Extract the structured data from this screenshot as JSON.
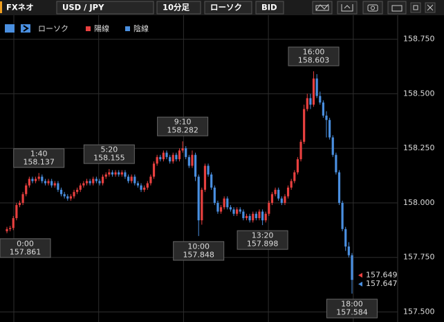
{
  "toolbar": {
    "app_name": "FXネオ",
    "pair": "USD / JPY",
    "interval": "10分足",
    "chart_kind": "ローソク",
    "price_side": "BID"
  },
  "chart_data": {
    "type": "candlestick",
    "indicator": "ローソク",
    "series": [
      {
        "name": "陽線",
        "color": "#e8403f"
      },
      {
        "name": "陰線",
        "color": "#4a8fe0"
      }
    ],
    "open": [
      157.87,
      157.88,
      157.885,
      157.93,
      157.99,
      158.0,
      158.04,
      158.08,
      158.11,
      158.1,
      158.11,
      158.12,
      158.1,
      158.09,
      158.1,
      158.08,
      158.09,
      158.06,
      158.04,
      158.03,
      158.02,
      158.03,
      158.05,
      158.06,
      158.08,
      158.09,
      158.1,
      158.09,
      158.11,
      158.1,
      158.09,
      158.12,
      158.13,
      158.14,
      158.13,
      158.14,
      158.13,
      158.14,
      158.12,
      158.1,
      158.12,
      158.09,
      158.08,
      158.06,
      158.07,
      158.09,
      158.12,
      158.18,
      158.21,
      158.2,
      158.23,
      158.21,
      158.19,
      158.22,
      158.2,
      158.24,
      158.25,
      158.21,
      158.17,
      158.22,
      158.12,
      157.92,
      158.06,
      158.17,
      158.13,
      158.07,
      158.0,
      157.96,
      157.98,
      158.02,
      157.98,
      157.97,
      157.95,
      157.97,
      157.96,
      157.93,
      157.94,
      157.92,
      157.95,
      157.93,
      157.96,
      157.92,
      157.95,
      158.0,
      158.04,
      158.06,
      158.02,
      158.0,
      158.03,
      158.07,
      158.1,
      158.14,
      158.2,
      158.28,
      158.43,
      158.48,
      158.45,
      158.57,
      158.49,
      158.46,
      158.4,
      158.38,
      158.3,
      158.22,
      158.14,
      158.0,
      157.88,
      157.8,
      157.76
    ],
    "high": [
      157.89,
      157.895,
      157.94,
      158.0,
      158.01,
      158.05,
      158.09,
      158.12,
      158.12,
      158.12,
      158.137,
      158.13,
      158.11,
      158.11,
      158.11,
      158.1,
      158.1,
      158.07,
      158.05,
      158.04,
      158.04,
      158.06,
      158.07,
      158.09,
      158.1,
      158.11,
      158.11,
      158.12,
      158.12,
      158.11,
      158.13,
      158.14,
      158.155,
      158.15,
      158.15,
      158.15,
      158.15,
      158.15,
      158.13,
      158.13,
      158.13,
      158.1,
      158.09,
      158.08,
      158.1,
      158.13,
      158.19,
      158.22,
      158.22,
      158.24,
      158.24,
      158.22,
      158.23,
      158.23,
      158.25,
      158.282,
      158.26,
      158.22,
      158.24,
      158.23,
      158.13,
      158.07,
      158.18,
      158.18,
      158.14,
      158.08,
      158.01,
      157.99,
      158.03,
      158.03,
      157.99,
      157.98,
      157.98,
      157.98,
      157.97,
      157.95,
      157.95,
      157.96,
      157.96,
      157.97,
      157.97,
      157.96,
      158.01,
      158.05,
      158.07,
      158.07,
      158.03,
      158.04,
      158.08,
      158.11,
      158.15,
      158.21,
      158.29,
      158.45,
      158.5,
      158.5,
      158.603,
      158.59,
      158.51,
      158.47,
      158.42,
      158.39,
      158.31,
      158.23,
      158.15,
      158.01,
      157.89,
      157.82,
      157.77
    ],
    "low": [
      157.861,
      157.87,
      157.875,
      157.92,
      157.98,
      157.99,
      158.03,
      158.07,
      158.09,
      158.09,
      158.1,
      158.09,
      158.08,
      158.08,
      158.07,
      158.07,
      158.05,
      158.03,
      158.02,
      158.01,
      158.01,
      158.02,
      158.04,
      158.05,
      158.07,
      158.08,
      158.08,
      158.08,
      158.09,
      158.08,
      158.08,
      158.11,
      158.12,
      158.12,
      158.12,
      158.12,
      158.12,
      158.11,
      158.09,
      158.09,
      158.08,
      158.07,
      158.05,
      158.05,
      158.06,
      158.08,
      158.11,
      158.17,
      158.19,
      158.19,
      158.2,
      158.18,
      158.18,
      158.19,
      158.19,
      158.23,
      158.2,
      158.16,
      158.16,
      158.1,
      157.848,
      157.9,
      158.05,
      158.12,
      158.06,
      157.99,
      157.95,
      157.95,
      157.97,
      157.97,
      157.96,
      157.94,
      157.94,
      157.95,
      157.92,
      157.92,
      157.91,
      157.91,
      157.92,
      157.92,
      157.898,
      157.91,
      157.94,
      157.99,
      158.03,
      158.01,
      157.99,
      157.99,
      158.02,
      158.06,
      158.09,
      158.13,
      158.19,
      158.27,
      158.42,
      158.43,
      158.44,
      158.48,
      158.45,
      158.39,
      158.3,
      158.29,
      158.21,
      158.13,
      157.99,
      157.87,
      157.78,
      157.75,
      157.584
    ],
    "close": [
      157.88,
      157.885,
      157.93,
      157.99,
      158.0,
      158.04,
      158.08,
      158.11,
      158.1,
      158.11,
      158.12,
      158.1,
      158.09,
      158.1,
      158.08,
      158.09,
      158.06,
      158.04,
      158.03,
      158.02,
      158.03,
      158.05,
      158.06,
      158.08,
      158.09,
      158.1,
      158.09,
      158.11,
      158.1,
      158.09,
      158.12,
      158.13,
      158.14,
      158.13,
      158.14,
      158.13,
      158.14,
      158.12,
      158.1,
      158.12,
      158.09,
      158.08,
      158.06,
      158.07,
      158.09,
      158.12,
      158.18,
      158.21,
      158.2,
      158.23,
      158.21,
      158.19,
      158.22,
      158.2,
      158.24,
      158.25,
      158.21,
      158.17,
      158.22,
      158.12,
      157.92,
      158.06,
      158.17,
      158.13,
      158.07,
      158.0,
      157.96,
      157.98,
      158.02,
      157.98,
      157.97,
      157.95,
      157.97,
      157.96,
      157.93,
      157.94,
      157.92,
      157.95,
      157.93,
      157.96,
      157.92,
      157.95,
      158.0,
      158.04,
      158.06,
      158.02,
      158.0,
      158.03,
      158.07,
      158.1,
      158.14,
      158.2,
      158.28,
      158.43,
      158.48,
      158.45,
      158.57,
      158.49,
      158.46,
      158.4,
      158.38,
      158.3,
      158.22,
      158.14,
      158.0,
      157.88,
      157.8,
      157.76,
      157.647
    ],
    "ylim": [
      157.454,
      158.86
    ],
    "yticks": [
      {
        "value": 157.5,
        "label": "157.500"
      },
      {
        "value": 157.75,
        "label": "157.750"
      },
      {
        "value": 158.0,
        "label": "158.000"
      },
      {
        "value": 158.25,
        "label": "158.250"
      },
      {
        "value": 158.5,
        "label": "158.500"
      },
      {
        "value": 158.75,
        "label": "158.750"
      }
    ],
    "grid": true,
    "annotations": [
      {
        "label": "0:00",
        "value": 157.861
      },
      {
        "label": "1:40",
        "value": 158.137
      },
      {
        "label": "5:20",
        "value": 158.155
      },
      {
        "label": "9:10",
        "value": 158.282
      },
      {
        "label": "10:00",
        "value": 157.848
      },
      {
        "label": "13:20",
        "value": 157.898
      },
      {
        "label": "16:00",
        "value": 158.603
      },
      {
        "label": "18:00",
        "value": 157.584
      }
    ],
    "price_tags": [
      {
        "value": 157.649,
        "color": "#e8403f"
      },
      {
        "value": 157.647,
        "color": "#4a8fe0"
      }
    ]
  }
}
